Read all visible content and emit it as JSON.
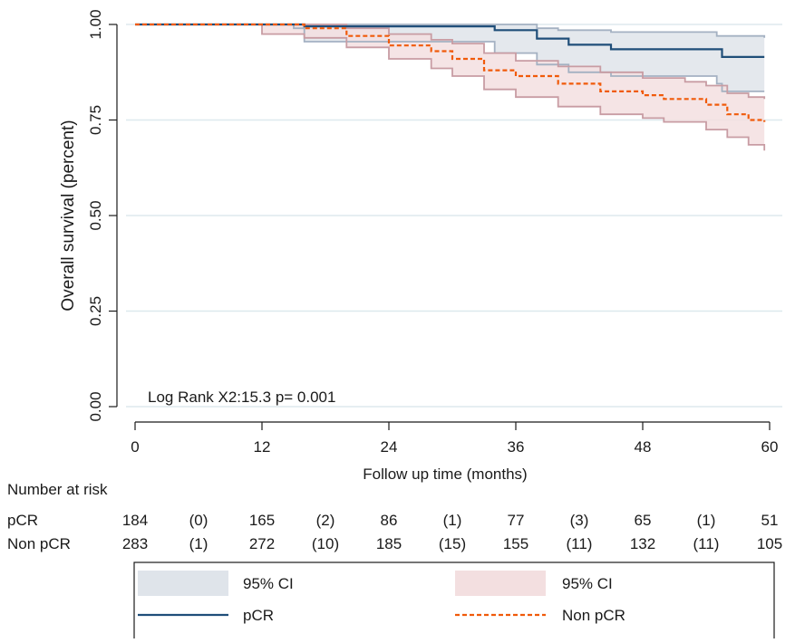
{
  "chart_data": {
    "type": "line",
    "subtype": "kaplan-meier survival curve with 95% confidence bands",
    "ylabel": "Overall survival (percent)",
    "xlabel": "Follow up time (months)",
    "xlim": [
      0,
      60
    ],
    "ylim": [
      0,
      1
    ],
    "x_ticks": [
      0,
      12,
      24,
      36,
      48,
      60
    ],
    "x_tick_labels": [
      "0",
      "12",
      "24",
      "36",
      "48",
      "60"
    ],
    "y_ticks": [
      0,
      0.25,
      0.5,
      0.75,
      1.0
    ],
    "y_tick_labels": [
      "0.00",
      "0.25",
      "0.50",
      "0.75",
      "1.00"
    ],
    "grid": "horizontal",
    "annotation": "Log Rank X2:15.3 p= 0.001",
    "series": [
      {
        "name": "pCR",
        "color": "#1f4e79",
        "line_style": "solid",
        "ci_fill": "#dfe4ea",
        "ci_edge": "#a4b1c2",
        "estimate": [
          [
            0,
            1.0
          ],
          [
            15.5,
            1.0
          ],
          [
            16,
            0.995
          ],
          [
            34,
            0.985
          ],
          [
            38,
            0.963
          ],
          [
            41,
            0.947
          ],
          [
            45,
            0.935
          ],
          [
            55,
            0.935
          ],
          [
            55.5,
            0.915
          ],
          [
            59.5,
            0.915
          ]
        ],
        "ci_upper": [
          [
            0,
            1.0
          ],
          [
            34,
            1.0
          ],
          [
            38,
            0.99
          ],
          [
            40,
            0.985
          ],
          [
            45,
            0.98
          ],
          [
            55,
            0.97
          ],
          [
            59.5,
            0.965
          ]
        ],
        "ci_lower": [
          [
            0,
            1.0
          ],
          [
            15,
            0.99
          ],
          [
            16,
            0.955
          ],
          [
            34,
            0.925
          ],
          [
            38,
            0.895
          ],
          [
            41,
            0.875
          ],
          [
            45,
            0.865
          ],
          [
            55,
            0.845
          ],
          [
            55.5,
            0.825
          ],
          [
            59.5,
            0.825
          ]
        ]
      },
      {
        "name": "Non pCR",
        "color": "#f05a0a",
        "line_style": "dashed",
        "ci_fill": "#f3dfe0",
        "ci_edge": "#c89ca3",
        "estimate": [
          [
            0,
            1.0
          ],
          [
            12,
            1.0
          ],
          [
            16,
            0.99
          ],
          [
            20,
            0.97
          ],
          [
            24,
            0.945
          ],
          [
            28,
            0.93
          ],
          [
            30,
            0.91
          ],
          [
            33,
            0.88
          ],
          [
            36,
            0.865
          ],
          [
            40,
            0.845
          ],
          [
            44,
            0.825
          ],
          [
            48,
            0.815
          ],
          [
            50,
            0.805
          ],
          [
            54,
            0.79
          ],
          [
            56,
            0.765
          ],
          [
            58,
            0.75
          ],
          [
            59.5,
            0.745
          ]
        ],
        "ci_upper": [
          [
            0,
            1.0
          ],
          [
            16,
            1.0
          ],
          [
            20,
            0.99
          ],
          [
            24,
            0.975
          ],
          [
            28,
            0.96
          ],
          [
            30,
            0.95
          ],
          [
            33,
            0.925
          ],
          [
            36,
            0.905
          ],
          [
            40,
            0.89
          ],
          [
            44,
            0.875
          ],
          [
            48,
            0.86
          ],
          [
            52,
            0.85
          ],
          [
            54,
            0.84
          ],
          [
            56,
            0.82
          ],
          [
            58,
            0.81
          ],
          [
            59.5,
            0.805
          ]
        ],
        "ci_lower": [
          [
            0,
            1.0
          ],
          [
            12,
            0.975
          ],
          [
            16,
            0.965
          ],
          [
            20,
            0.94
          ],
          [
            24,
            0.91
          ],
          [
            28,
            0.885
          ],
          [
            30,
            0.865
          ],
          [
            33,
            0.83
          ],
          [
            36,
            0.81
          ],
          [
            40,
            0.785
          ],
          [
            44,
            0.765
          ],
          [
            48,
            0.755
          ],
          [
            50,
            0.745
          ],
          [
            54,
            0.725
          ],
          [
            56,
            0.705
          ],
          [
            58,
            0.685
          ],
          [
            59.5,
            0.67
          ]
        ]
      }
    ],
    "legend_position": "bottom",
    "legend": [
      {
        "label": "95% CI",
        "kind": "band",
        "color": "#dfe4ea"
      },
      {
        "label": "95% CI",
        "kind": "band",
        "color": "#f3dfe0"
      },
      {
        "label": "pCR",
        "kind": "line",
        "color": "#1f4e79",
        "line_style": "solid"
      },
      {
        "label": "Non pCR",
        "kind": "line",
        "color": "#f05a0a",
        "line_style": "dashed"
      }
    ],
    "risk_table": {
      "title": "Number at risk",
      "rows": [
        {
          "label": "pCR",
          "values": [
            "184",
            "(0)",
            "165",
            "(2)",
            "86",
            "(1)",
            "77",
            "(3)",
            "65",
            "(1)",
            "51"
          ]
        },
        {
          "label": "Non pCR",
          "values": [
            "283",
            "(1)",
            "272",
            "(10)",
            "185",
            "(15)",
            "155",
            "(11)",
            "132",
            "(11)",
            "105"
          ]
        }
      ],
      "value_x": [
        0,
        6,
        12,
        18,
        24,
        30,
        36,
        42,
        48,
        54,
        60
      ]
    }
  }
}
